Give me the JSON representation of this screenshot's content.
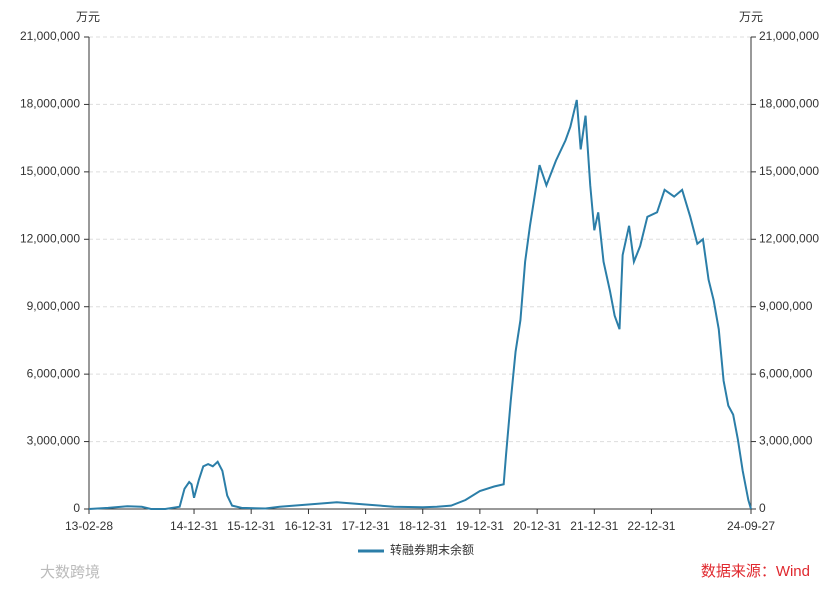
{
  "chart_data": {
    "type": "line",
    "y_unit": "万元",
    "y2_unit": "万元",
    "x": [
      "13-02-28",
      "13-06-30",
      "13-10-31",
      "14-01-31",
      "14-03-31",
      "14-06-30",
      "14-09-30",
      "14-10-31",
      "14-11-30",
      "14-12-15",
      "14-12-31",
      "15-01-31",
      "15-02-28",
      "15-03-31",
      "15-04-30",
      "15-05-31",
      "15-06-30",
      "15-07-31",
      "15-08-31",
      "15-10-31",
      "16-03-31",
      "16-06-30",
      "16-12-31",
      "17-06-30",
      "17-12-31",
      "18-06-30",
      "18-12-31",
      "19-03-31",
      "19-06-30",
      "19-09-30",
      "19-12-31",
      "20-03-31",
      "20-05-31",
      "20-06-15",
      "20-07-15",
      "20-08-15",
      "20-09-15",
      "20-10-15",
      "20-11-15",
      "21-01-15",
      "21-02-28",
      "21-04-30",
      "21-06-30",
      "21-07-31",
      "21-09-10",
      "21-10-05",
      "21-11-05",
      "21-12-05",
      "21-12-31",
      "22-01-25",
      "22-02-28",
      "22-04-10",
      "22-05-10",
      "22-06-10",
      "22-06-30",
      "22-08-10",
      "22-09-10",
      "22-10-20",
      "22-12-05",
      "23-02-05",
      "23-03-25",
      "23-05-25",
      "23-07-15",
      "23-09-05",
      "23-10-20",
      "23-11-25",
      "23-12-31",
      "24-02-01",
      "24-03-05",
      "24-04-05",
      "24-05-05",
      "24-06-05",
      "24-07-05",
      "24-08-05",
      "24-09-10",
      "24-09-27"
    ],
    "series": [
      {
        "name": "转融券期末余额",
        "color": "#2b7ea8",
        "values": [
          0,
          50000,
          120000,
          100000,
          0,
          0,
          100000,
          900000,
          1200000,
          1100000,
          500000,
          1300000,
          1900000,
          2000000,
          1900000,
          2100000,
          1700000,
          600000,
          150000,
          50000,
          20000,
          100000,
          200000,
          300000,
          200000,
          100000,
          80000,
          100000,
          150000,
          400000,
          800000,
          1000000,
          1100000,
          2400000,
          4800000,
          7000000,
          8400000,
          11000000,
          12600000,
          15300000,
          14400000,
          15500000,
          16400000,
          17000000,
          18200000,
          16000000,
          17500000,
          14400000,
          12400000,
          13200000,
          11000000,
          9700000,
          8600000,
          8000000,
          11300000,
          12600000,
          11000000,
          11700000,
          13000000,
          13200000,
          14200000,
          13900000,
          14200000,
          13000000,
          11800000,
          12000000,
          10200000,
          9300000,
          8000000,
          5700000,
          4600000,
          4200000,
          3100000,
          1700000,
          400000,
          0
        ]
      }
    ],
    "xlim": [
      "13-02-28",
      "24-09-27"
    ],
    "xticks": [
      "13-02-28",
      "14-12-31",
      "15-12-31",
      "16-12-31",
      "17-12-31",
      "18-12-31",
      "19-12-31",
      "20-12-31",
      "21-12-31",
      "22-12-31",
      "24-09-27"
    ],
    "ylim": [
      0,
      21000000
    ],
    "yticks": [
      0,
      {
        "value": 3000000,
        "label": "3,000,000"
      },
      {
        "value": 6000000,
        "label": "6,000,000"
      },
      {
        "value": 9000000,
        "label": "9,000,000"
      },
      {
        "value": 12000000,
        "label": "12,000,000"
      },
      {
        "value": 15000000,
        "label": "15,000,000"
      },
      {
        "value": 18000000,
        "label": "18,000,000"
      },
      {
        "value": 21000000,
        "label": "21,000,000"
      }
    ],
    "y2lim": [
      0,
      21000000
    ],
    "y2ticks": [
      0,
      {
        "value": 3000000,
        "label": "3,000,000"
      },
      {
        "value": 6000000,
        "label": "6,000,000"
      },
      {
        "value": 9000000,
        "label": "9,000,000"
      },
      {
        "value": 12000000,
        "label": "12,000,000"
      },
      {
        "value": 15000000,
        "label": "15,000,000"
      },
      {
        "value": 18000000,
        "label": "18,000,000"
      },
      {
        "value": 21000000,
        "label": "21,000,000"
      }
    ],
    "grid": true,
    "legend": "bottom",
    "source": "数据来源：Wind",
    "watermark": "大数跨境"
  }
}
